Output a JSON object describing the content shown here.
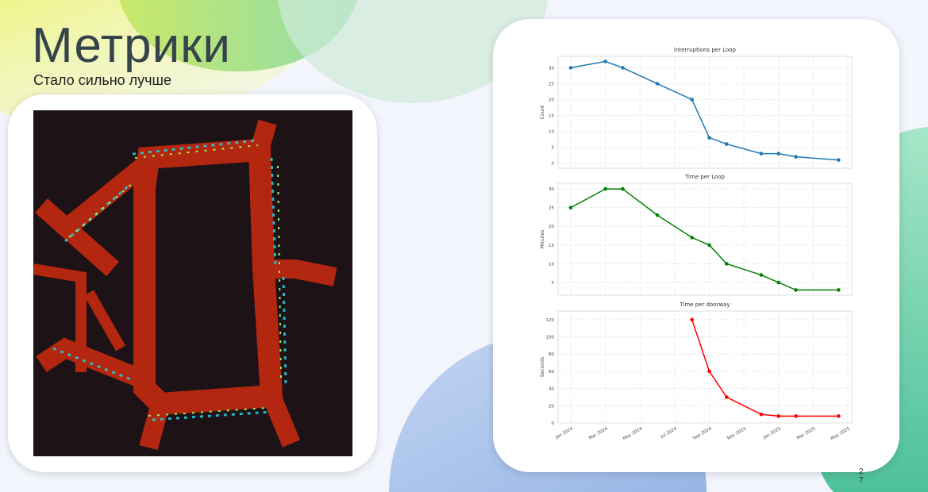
{
  "slide": {
    "title": "Метрики",
    "subtitle": "Стало сильно лучше",
    "page_number": "27"
  },
  "colors": {
    "title": "#37434b",
    "series1": "#1f77b4",
    "series2": "#008000",
    "series3": "#ff0000",
    "heatmap_bg": "#1d1216",
    "heatmap_path": "#b3260f"
  },
  "image": {
    "description_icon": "heatmap-floorplan-image"
  },
  "chart_data": [
    {
      "type": "line",
      "title": "Interruptions per Loop",
      "xlabel": "",
      "ylabel": "Count",
      "color": "#1f77b4",
      "x": [
        "2024-01-01",
        "2024-03-01",
        "2024-04-01",
        "2024-06-01",
        "2024-08-01",
        "2024-09-01",
        "2024-10-01",
        "2024-12-01",
        "2025-01-01",
        "2025-02-01",
        "2025-04-15"
      ],
      "values": [
        30,
        32,
        30,
        25,
        20,
        8,
        6,
        3,
        3,
        2,
        1
      ],
      "ylim": [
        -1.6,
        33.6
      ],
      "yticks": [
        0,
        5,
        10,
        15,
        20,
        25,
        30
      ],
      "grid": true
    },
    {
      "type": "line",
      "title": "Time per Loop",
      "xlabel": "",
      "ylabel": "Minutes",
      "color": "#008000",
      "x": [
        "2024-01-01",
        "2024-03-01",
        "2024-04-01",
        "2024-06-01",
        "2024-08-01",
        "2024-09-01",
        "2024-10-01",
        "2024-12-01",
        "2025-01-01",
        "2025-02-01",
        "2025-04-15"
      ],
      "values": [
        25,
        30,
        30,
        23,
        17,
        15,
        10,
        7,
        5,
        3,
        3
      ],
      "ylim": [
        1.6,
        31.5
      ],
      "yticks": [
        5,
        10,
        15,
        20,
        25,
        30
      ],
      "grid": true
    },
    {
      "type": "line",
      "title": "Time per doorway",
      "xlabel": "",
      "ylabel": "Seconds",
      "color": "#ff0000",
      "x": [
        "2024-08-01",
        "2024-09-01",
        "2024-10-01",
        "2024-12-01",
        "2025-01-01",
        "2025-02-01",
        "2025-04-15"
      ],
      "values": [
        120,
        60,
        30,
        10,
        8,
        8,
        8
      ],
      "ylim": [
        0,
        130
      ],
      "yticks": [
        0,
        20,
        40,
        60,
        80,
        100,
        120
      ],
      "xticks": [
        "Jan 2024",
        "Mar 2024",
        "May 2024",
        "Jul 2024",
        "Sep 2024",
        "Nov 2024",
        "Jan 2025",
        "Mar 2025",
        "May 2025"
      ],
      "grid": true
    }
  ]
}
